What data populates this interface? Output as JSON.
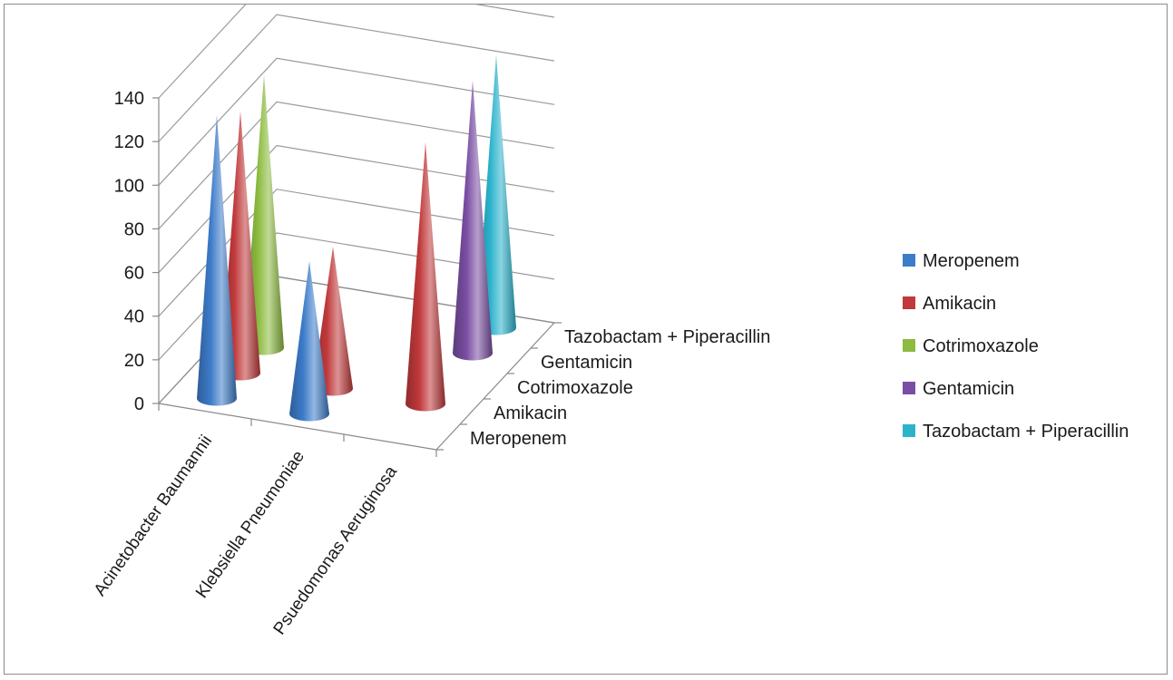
{
  "chart_data": {
    "type": "3d-cone",
    "title": "",
    "categories": [
      "Acinetobacter Baumannii",
      "Klebsiella Pneumoniae",
      "Psuedomonas Aeruginosa"
    ],
    "ylim": [
      0,
      140
    ],
    "yticks": [
      0,
      20,
      40,
      60,
      80,
      100,
      120,
      140
    ],
    "grid": true,
    "legend": "right",
    "series": [
      {
        "name": "Meropenem",
        "color": "#3d7cc9",
        "values": [
          130,
          70,
          0
        ]
      },
      {
        "name": "Amikacin",
        "color": "#c0393b",
        "values": [
          120,
          65,
          120
        ]
      },
      {
        "name": "Cotrimoxazole",
        "color": "#8cbb3f",
        "values": [
          125,
          0,
          0
        ]
      },
      {
        "name": "Gentamicin",
        "color": "#7a4ea3",
        "values": [
          0,
          0,
          125
        ]
      },
      {
        "name": "Tazobactam + Piperacillin",
        "color": "#2bb3cc",
        "values": [
          0,
          0,
          125
        ]
      }
    ]
  }
}
